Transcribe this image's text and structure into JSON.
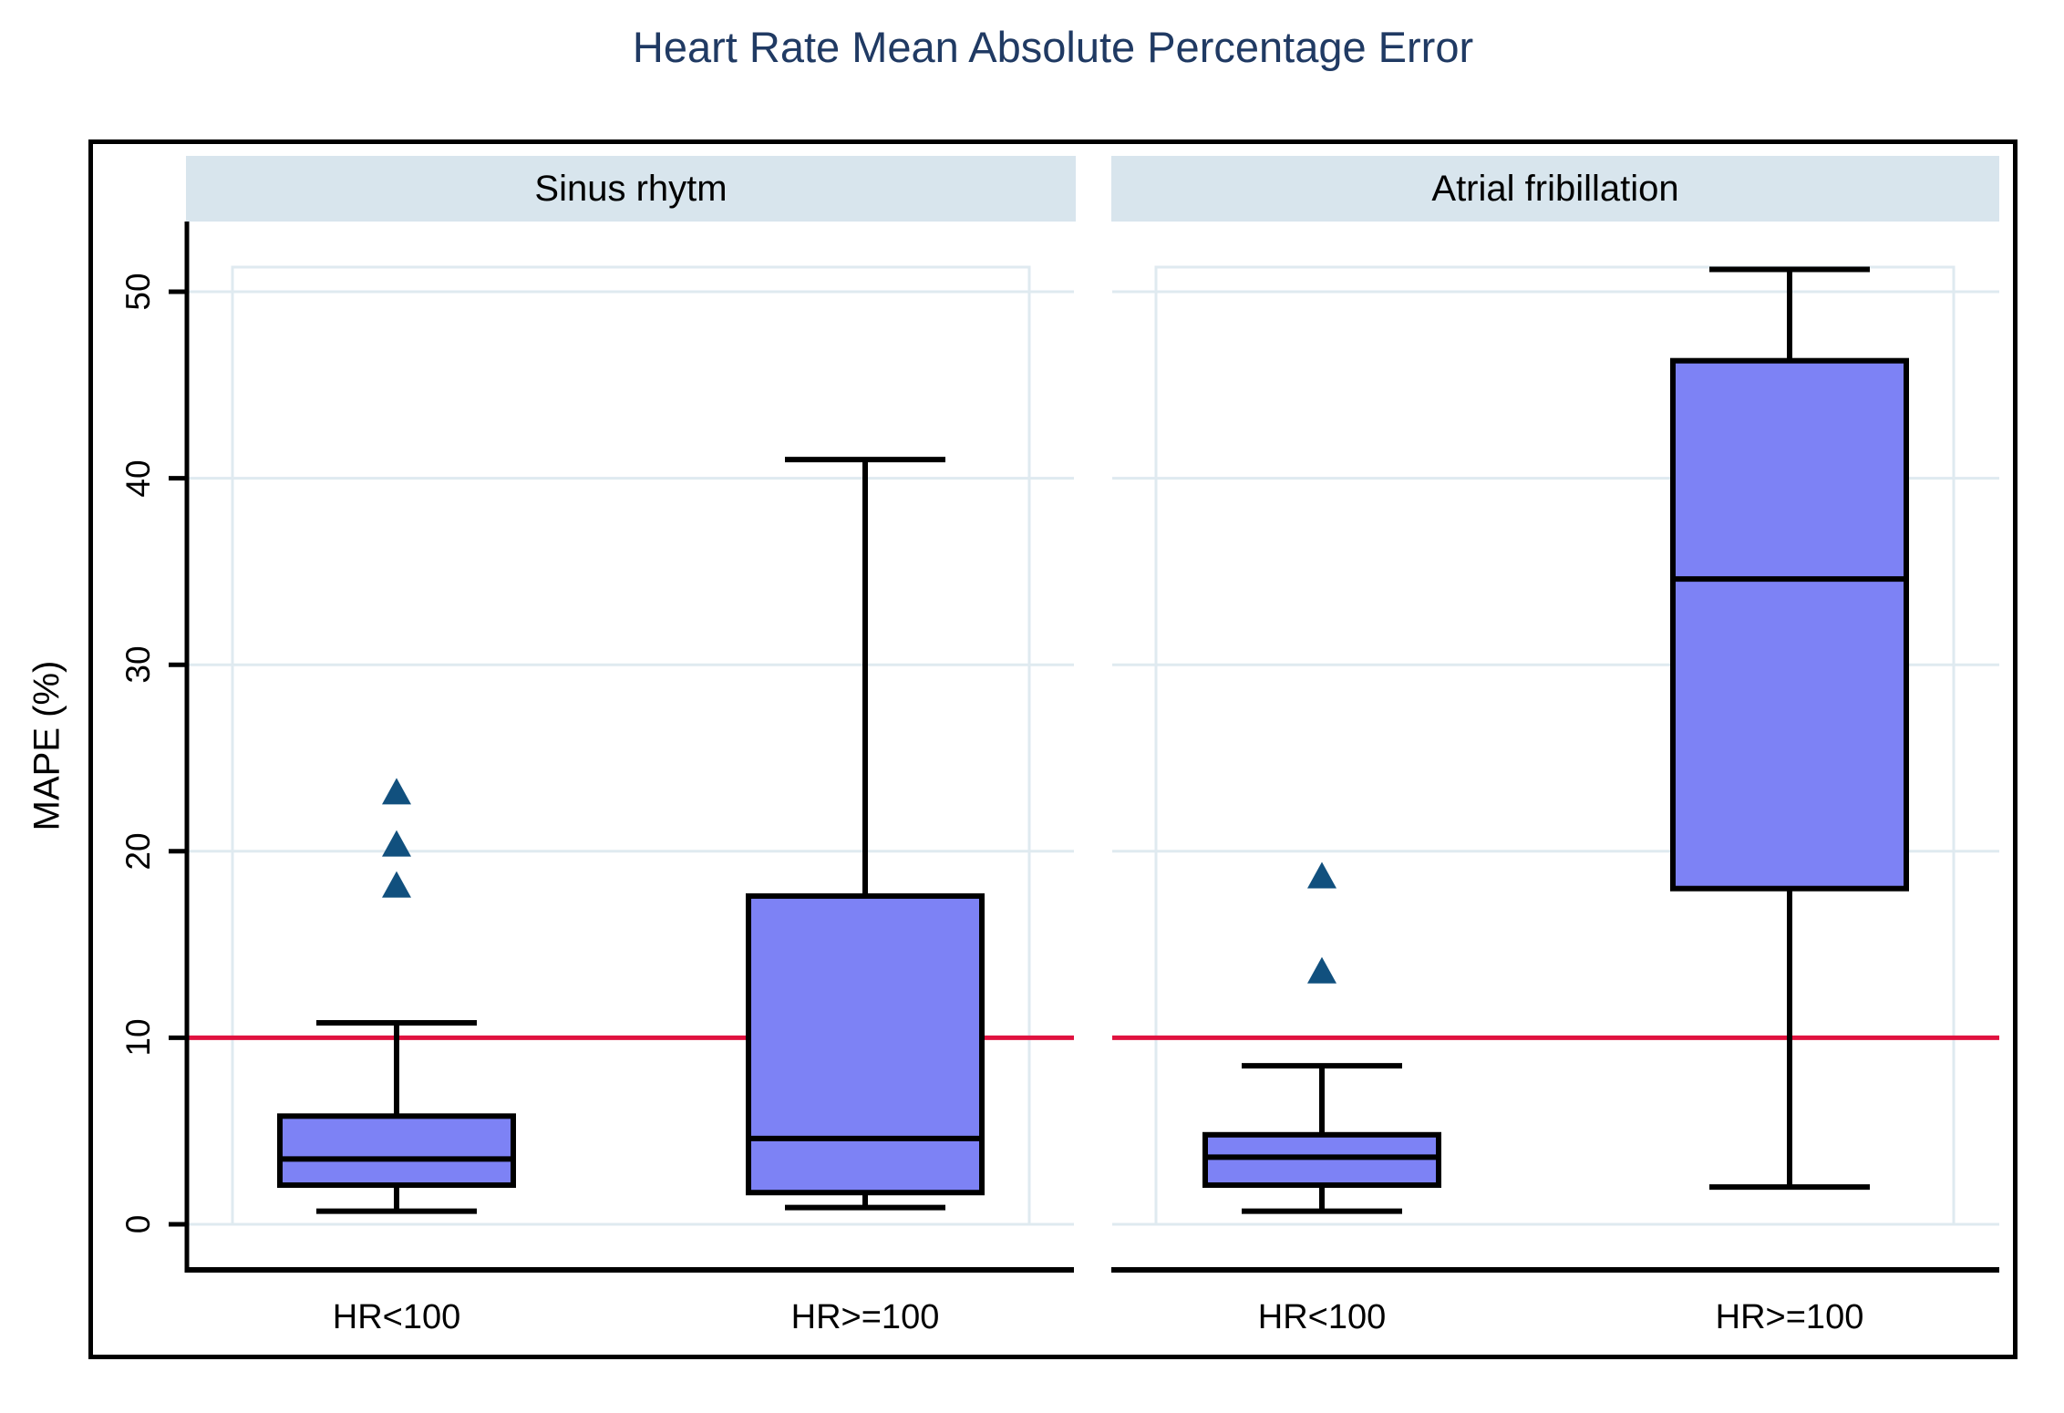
{
  "chart_data": {
    "type": "boxplot",
    "title": "Heart Rate Mean Absolute Percentage Error",
    "ylabel": "MAPE (%)",
    "ylim": [
      0,
      51.3
    ],
    "yticks": [
      0,
      10,
      20,
      30,
      40,
      50
    ],
    "grid": true,
    "reference_line": {
      "value": 10
    },
    "panels": [
      {
        "title": "Sinus rhytm",
        "categories": [
          "HR<100",
          "HR>=100"
        ],
        "boxes": [
          {
            "category": "HR<100",
            "whisker_low": 0.7,
            "q1": 2.1,
            "median": 3.5,
            "q3": 5.8,
            "whisker_high": 10.8,
            "outliers": [
              18.1,
              20.3,
              23.1
            ]
          },
          {
            "category": "HR>=100",
            "whisker_low": 0.9,
            "q1": 1.7,
            "median": 4.6,
            "q3": 17.6,
            "whisker_high": 41.0,
            "outliers": []
          }
        ]
      },
      {
        "title": "Atrial fribillation",
        "categories": [
          "HR<100",
          "HR>=100"
        ],
        "boxes": [
          {
            "category": "HR<100",
            "whisker_low": 0.7,
            "q1": 2.1,
            "median": 3.6,
            "q3": 4.8,
            "whisker_high": 8.5,
            "outliers": [
              13.5,
              18.6
            ]
          },
          {
            "category": "HR>=100",
            "whisker_low": 2.0,
            "q1": 18.0,
            "median": 34.6,
            "q3": 46.3,
            "whisker_high": 51.2,
            "outliers": []
          }
        ]
      }
    ],
    "colors": {
      "box_fill": "#7d82f5",
      "box_border": "#000000",
      "outlier_marker": "#11507e",
      "reference_line": "#e0123f",
      "panel_header_bg": "#d8e5ed",
      "grid_line": "#dfeaf0",
      "axis_line": "#000000",
      "title_text": "#203a63",
      "tick_text": "#000000"
    }
  }
}
